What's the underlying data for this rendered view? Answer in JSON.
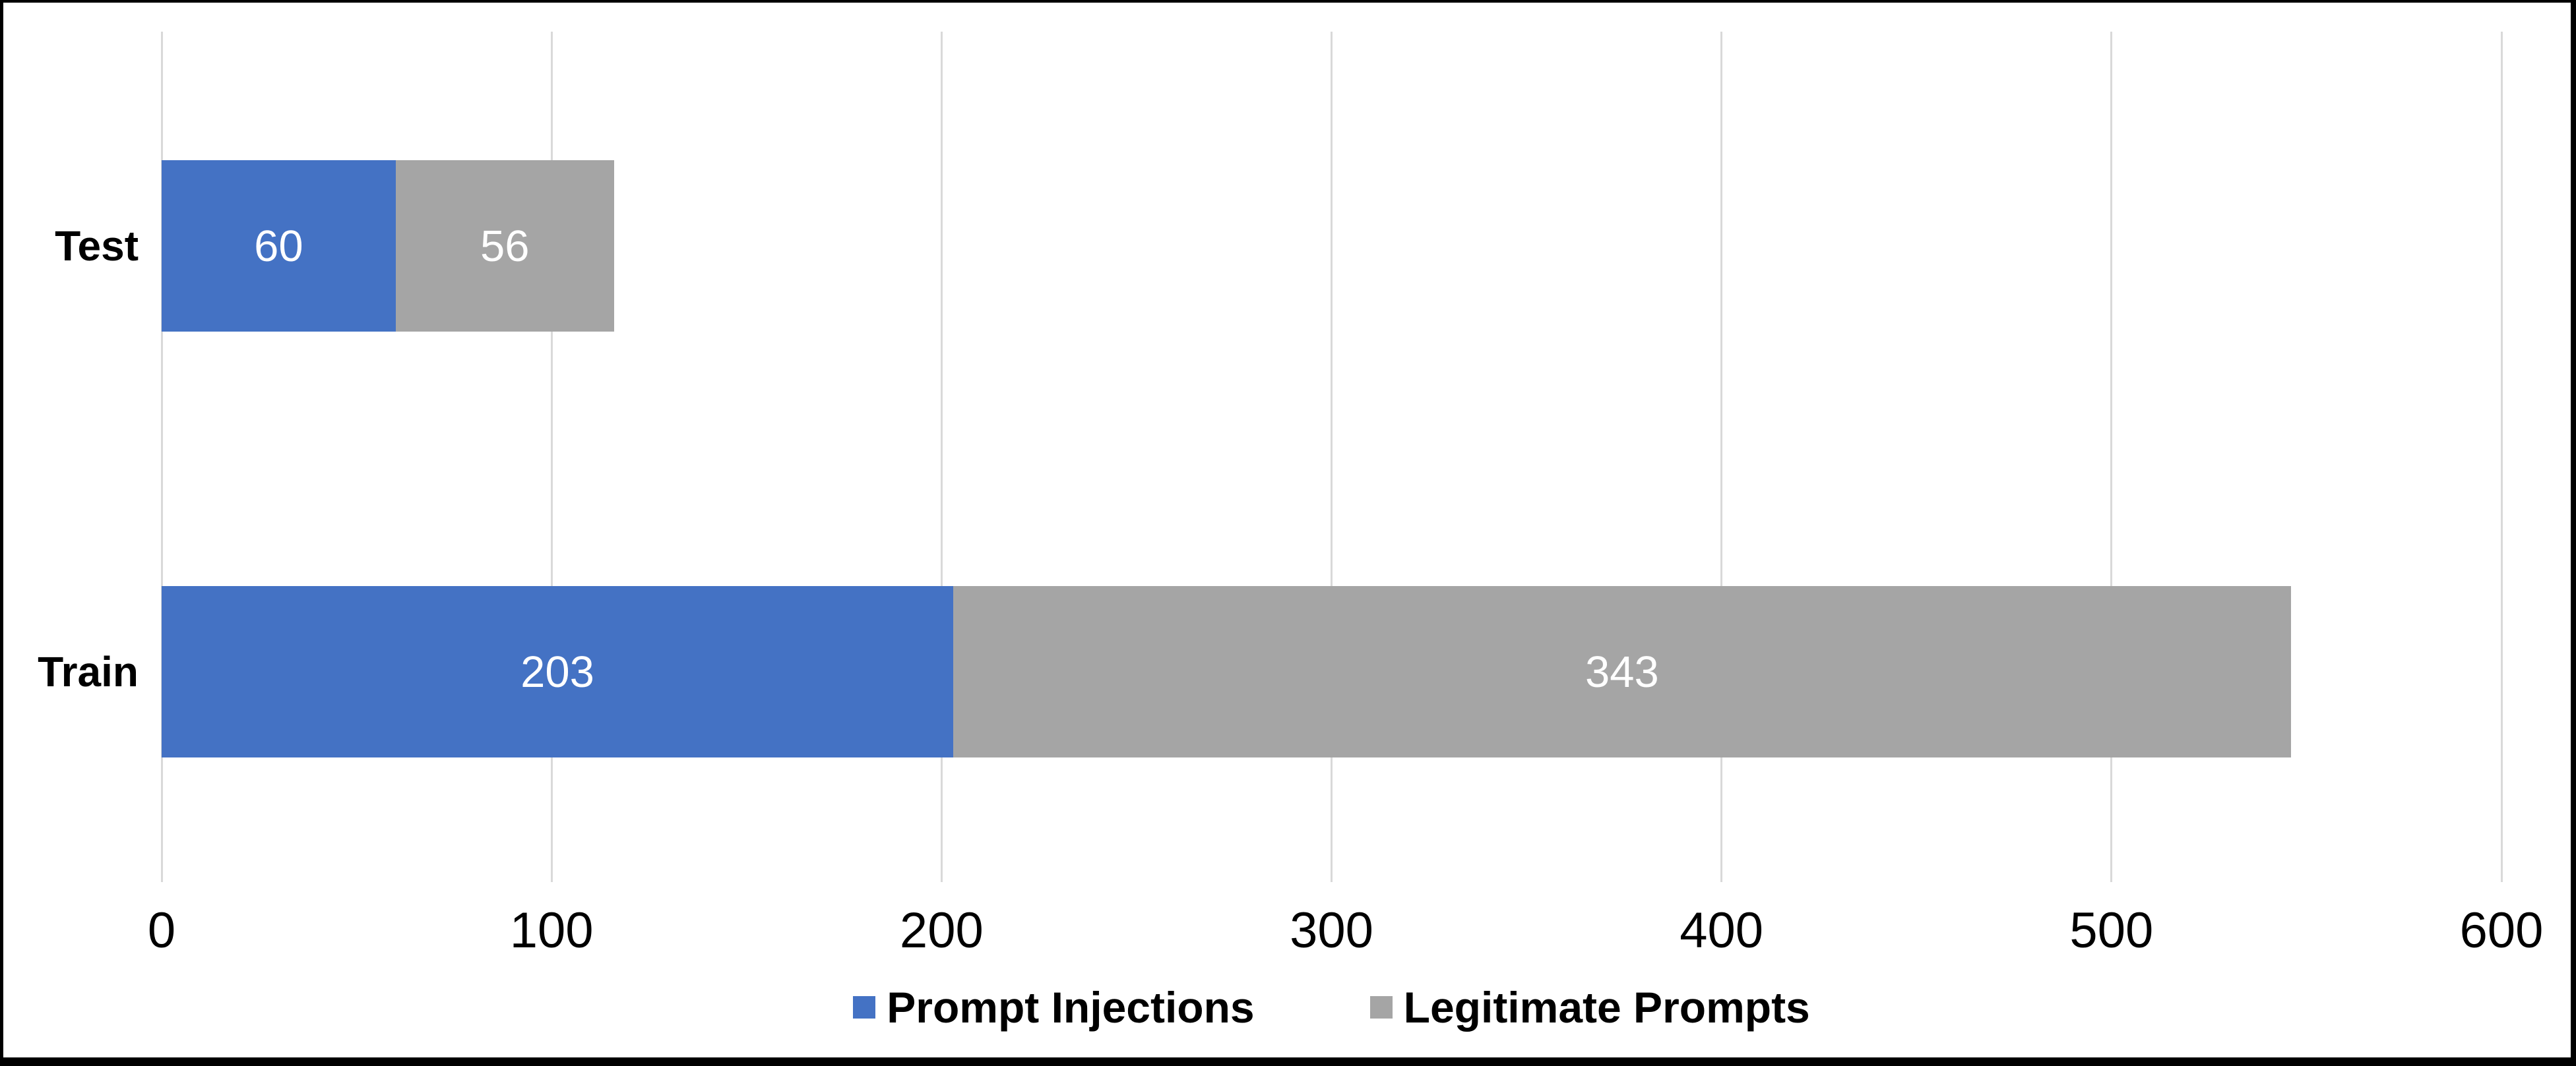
{
  "chart_data": {
    "type": "bar",
    "orientation": "horizontal",
    "stacked": true,
    "title": "",
    "xlabel": "",
    "ylabel": "",
    "categories": [
      "Test",
      "Train"
    ],
    "series": [
      {
        "name": "Prompt Injections",
        "color": "#4472C4",
        "values": [
          60,
          203
        ]
      },
      {
        "name": "Legitimate Prompts",
        "color": "#A5A5A5",
        "values": [
          56,
          343
        ]
      }
    ],
    "data_labels": {
      "show": true,
      "color": "#FFFFFF"
    },
    "xlim": [
      0,
      600
    ],
    "xticks": [
      "0",
      "100",
      "200",
      "300",
      "400",
      "500",
      "600"
    ],
    "grid": true,
    "gridline_color": "#D9D9D9",
    "legend_position": "bottom",
    "background_color": "#FFFFFF",
    "frame_color": "#000000",
    "axis_text_color": "#000000"
  }
}
